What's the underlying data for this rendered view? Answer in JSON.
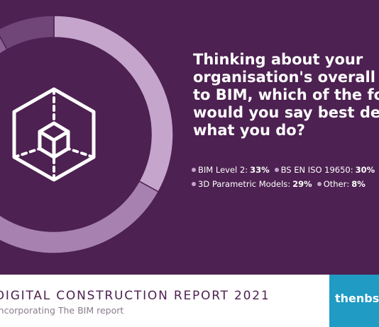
{
  "question": "Thinking about your\norganisation's overall approach\nto BIM, which of the following\nwould you say best describes\nwhat you do?",
  "icon": "wireframe-cube-icon",
  "chart_data": {
    "type": "pie",
    "style": "donut",
    "series": [
      {
        "name": "BIM Level 2",
        "value": 33,
        "label": "33%",
        "color": "#c6a5cd"
      },
      {
        "name": "BS EN ISO 19650",
        "value": 30,
        "label": "30%",
        "color": "#a782b0"
      },
      {
        "name": "3D Parametric Models",
        "value": 29,
        "label": "29%",
        "color": "#8a6394"
      },
      {
        "name": "Other",
        "value": 8,
        "label": "8%",
        "color": "#6f4677"
      }
    ]
  },
  "footer": {
    "title": "DIGITAL CONSTRUCTION REPORT 2021",
    "subtitle": "Incorporating The BIM report",
    "brand": "thenbs"
  },
  "colors": {
    "background": "#4d2151",
    "text": "#ffffff",
    "brand_box": "#1f9bc4",
    "track": "#5e3263"
  }
}
